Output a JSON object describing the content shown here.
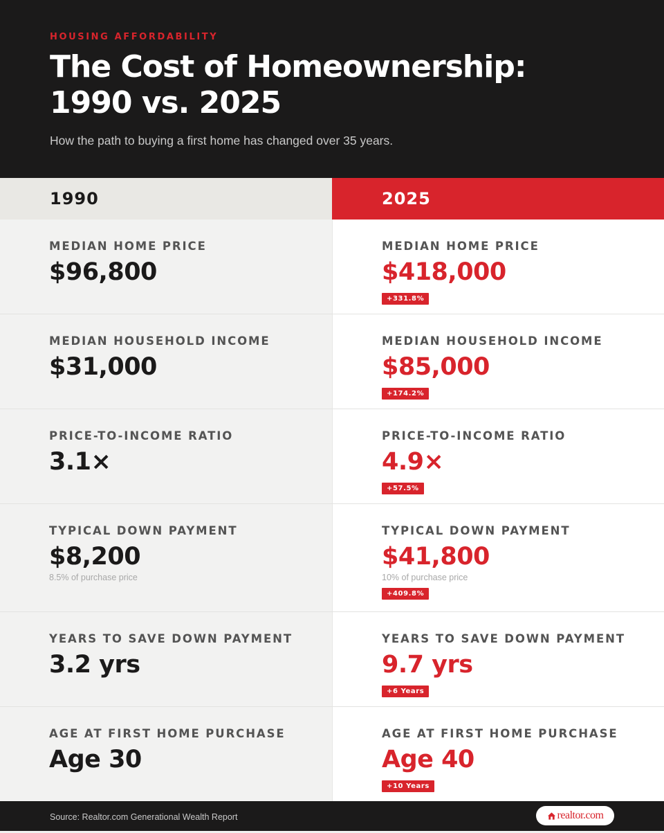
{
  "header": {
    "eyebrow": "HOUSING AFFORDABILITY",
    "title_line1": "The Cost of Homeownership:",
    "title_line2": "1990 vs. 2025",
    "subtitle": "How the path to buying a first home has changed over 35 years."
  },
  "columns": {
    "left": "1990",
    "right": "2025"
  },
  "rows": [
    {
      "label": "MEDIAN HOME PRICE",
      "left": {
        "value": "$96,800"
      },
      "right": {
        "value": "$418,000",
        "badge": "+331.8%"
      }
    },
    {
      "label": "MEDIAN HOUSEHOLD INCOME",
      "left": {
        "value": "$31,000"
      },
      "right": {
        "value": "$85,000",
        "badge": "+174.2%"
      }
    },
    {
      "label": "PRICE-TO-INCOME RATIO",
      "left": {
        "value": "3.1×"
      },
      "right": {
        "value": "4.9×",
        "badge": "+57.5%"
      }
    },
    {
      "label": "TYPICAL DOWN PAYMENT",
      "left": {
        "value": "$8,200",
        "note": "8.5% of purchase price"
      },
      "right": {
        "value": "$41,800",
        "note": "10% of purchase price",
        "badge": "+409.8%"
      }
    },
    {
      "label": "YEARS TO SAVE DOWN PAYMENT",
      "left": {
        "value": "3.2 yrs"
      },
      "right": {
        "value": "9.7 yrs",
        "badge": "+6 Years"
      }
    },
    {
      "label": "AGE AT FIRST HOME PURCHASE",
      "left": {
        "value": "Age 30"
      },
      "right": {
        "value": "Age 40",
        "badge": "+10 Years"
      }
    }
  ],
  "footer": {
    "source": "Source: Realtor.com Generational Wealth Report",
    "logo_text": "realtor.com"
  },
  "colors": {
    "accent": "#d8242c",
    "dark": "#1b1a1a"
  }
}
